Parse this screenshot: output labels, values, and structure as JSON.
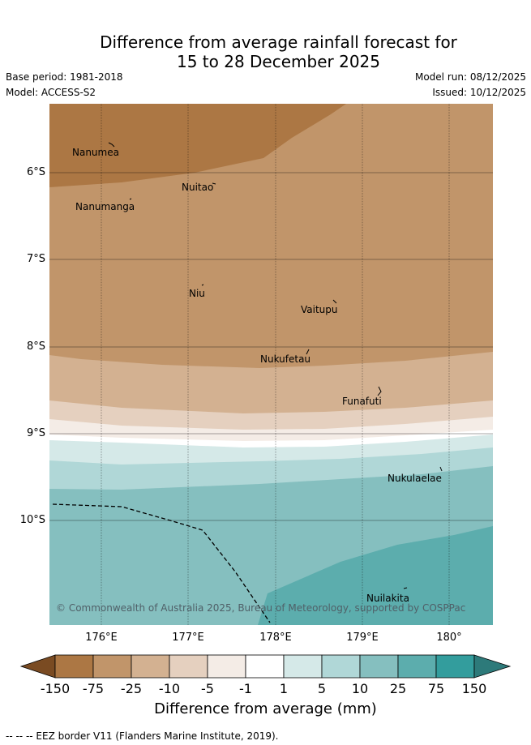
{
  "title": {
    "line1": "Difference from average rainfall forecast for",
    "line2": "15 to 28 December 2025"
  },
  "meta": {
    "base_period": "Base period: 1981-2018",
    "model": "Model: ACCESS-S2",
    "model_run": "Model run: 08/12/2025",
    "issued": "Issued: 10/12/2025"
  },
  "map": {
    "latitude_labels": [
      "6°S",
      "7°S",
      "8°S",
      "9°S",
      "10°S"
    ],
    "longitude_labels": [
      "176°E",
      "177°E",
      "178°E",
      "179°E",
      "180°"
    ],
    "places": [
      "Nanumea",
      "Nuitao",
      "Nanumanga",
      "Niu",
      "Vaitupu",
      "Nukufetau",
      "Funafuti",
      "Nukulaelae",
      "Nuilakita"
    ],
    "copyright": "© Commonwealth of Australia 2025, Bureau of Meteorology, supported by COSPPac"
  },
  "colorbar": {
    "colors": [
      "#7a4b22",
      "#ac7744",
      "#c1956a",
      "#d3b191",
      "#e5d0bf",
      "#f4ece6",
      "#ffffff",
      "#d5e9e8",
      "#b0d7d7",
      "#85bfbf",
      "#5cadad",
      "#339d9d",
      "#2d7a7a"
    ],
    "tick_labels": [
      "-150",
      "-75",
      "-25",
      "-10",
      "-5",
      "-1",
      "1",
      "5",
      "10",
      "25",
      "75",
      "150"
    ],
    "title": "Difference from average (mm)"
  },
  "legend": {
    "eez_line": "--  --  -- EEZ border V11 (Flanders Marine Institute, 2019)."
  },
  "colors": {
    "dark_dry": "#ac7744",
    "dry": "#c1956a",
    "mild_dry": "#d3b191",
    "wet": "#85bfbf",
    "very_wet": "#5cadad"
  }
}
